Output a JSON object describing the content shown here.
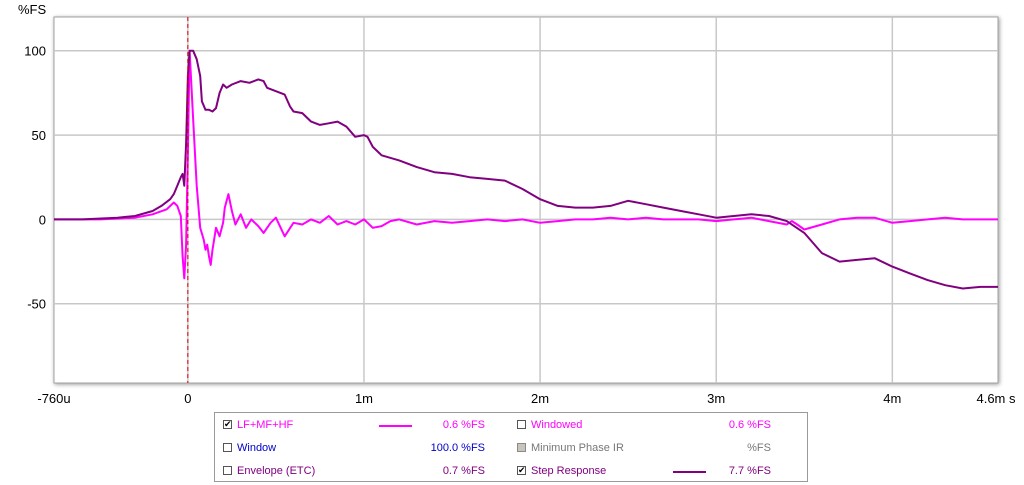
{
  "chart_data": {
    "type": "line",
    "ylabel": "%FS",
    "x_unit": "s",
    "xlim": [
      -0.00076,
      0.0046
    ],
    "ylim": [
      -97,
      120
    ],
    "x_ticks": [
      {
        "value": -0.00076,
        "label": "-760u"
      },
      {
        "value": 0,
        "label": "0"
      },
      {
        "value": 0.001,
        "label": "1m"
      },
      {
        "value": 0.002,
        "label": "2m"
      },
      {
        "value": 0.003,
        "label": "3m"
      },
      {
        "value": 0.004,
        "label": "4m"
      },
      {
        "value": 0.0046,
        "label": "4.6m s"
      }
    ],
    "y_ticks": [
      {
        "value": 100,
        "label": "100"
      },
      {
        "value": 50,
        "label": "50"
      },
      {
        "value": 0,
        "label": "0"
      },
      {
        "value": -50,
        "label": "-50"
      }
    ],
    "grid": true,
    "cursor_x": 0,
    "cursor_color": "#e00000",
    "series": [
      {
        "name": "LF+MF+HF",
        "color": "#ff00ff",
        "points": [
          [
            -0.00076,
            0
          ],
          [
            -0.0005,
            0
          ],
          [
            -0.0003,
            1
          ],
          [
            -0.0002,
            3
          ],
          [
            -0.00012,
            6
          ],
          [
            -8e-05,
            10
          ],
          [
            -6e-05,
            8
          ],
          [
            -4e-05,
            2
          ],
          [
            -3e-05,
            -22
          ],
          [
            -2e-05,
            -35
          ],
          [
            -1e-05,
            -15
          ],
          [
            0,
            40
          ],
          [
            1e-05,
            100
          ],
          [
            3e-05,
            60
          ],
          [
            5e-05,
            20
          ],
          [
            7e-05,
            -5
          ],
          [
            9e-05,
            -12
          ],
          [
            0.0001,
            -18
          ],
          [
            0.00011,
            -15
          ],
          [
            0.00012,
            -22
          ],
          [
            0.00013,
            -27
          ],
          [
            0.00014,
            -18
          ],
          [
            0.00016,
            -5
          ],
          [
            0.00018,
            -10
          ],
          [
            0.0002,
            -2
          ],
          [
            0.00021,
            7
          ],
          [
            0.00023,
            15
          ],
          [
            0.00025,
            5
          ],
          [
            0.00027,
            -3
          ],
          [
            0.0003,
            3
          ],
          [
            0.00033,
            -5
          ],
          [
            0.00036,
            0
          ],
          [
            0.0004,
            -4
          ],
          [
            0.00043,
            -8
          ],
          [
            0.00047,
            -2
          ],
          [
            0.0005,
            1
          ],
          [
            0.00055,
            -10
          ],
          [
            0.0006,
            -2
          ],
          [
            0.00065,
            -3
          ],
          [
            0.0007,
            0
          ],
          [
            0.00075,
            -2
          ],
          [
            0.0008,
            2
          ],
          [
            0.00085,
            -3
          ],
          [
            0.0009,
            -1
          ],
          [
            0.00095,
            -3
          ],
          [
            0.001,
            0
          ],
          [
            0.00105,
            -5
          ],
          [
            0.0011,
            -4
          ],
          [
            0.00115,
            -1
          ],
          [
            0.0012,
            0
          ],
          [
            0.0013,
            -3
          ],
          [
            0.0014,
            -1
          ],
          [
            0.0015,
            -2
          ],
          [
            0.0016,
            -1
          ],
          [
            0.0017,
            0
          ],
          [
            0.0018,
            -1
          ],
          [
            0.0019,
            0
          ],
          [
            0.002,
            -2
          ],
          [
            0.0021,
            -1
          ],
          [
            0.0022,
            0
          ],
          [
            0.0023,
            0
          ],
          [
            0.0024,
            1
          ],
          [
            0.0025,
            0
          ],
          [
            0.0026,
            1
          ],
          [
            0.0027,
            0
          ],
          [
            0.0028,
            0
          ],
          [
            0.0029,
            0
          ],
          [
            0.003,
            -1
          ],
          [
            0.0031,
            0
          ],
          [
            0.0032,
            1
          ],
          [
            0.0033,
            -1
          ],
          [
            0.0034,
            -3
          ],
          [
            0.00343,
            -1
          ],
          [
            0.00346,
            -3
          ],
          [
            0.0035,
            -6
          ],
          [
            0.0036,
            -3
          ],
          [
            0.0037,
            0
          ],
          [
            0.0038,
            1
          ],
          [
            0.0039,
            1
          ],
          [
            0.004,
            -2
          ],
          [
            0.0041,
            -1
          ],
          [
            0.0042,
            0
          ],
          [
            0.0043,
            1
          ],
          [
            0.0044,
            0
          ],
          [
            0.0045,
            0
          ],
          [
            0.0046,
            0
          ]
        ]
      },
      {
        "name": "Step Response",
        "color": "#800080",
        "points": [
          [
            -0.00076,
            0
          ],
          [
            -0.0006,
            0
          ],
          [
            -0.0004,
            1
          ],
          [
            -0.0003,
            2
          ],
          [
            -0.0002,
            5
          ],
          [
            -0.00015,
            8
          ],
          [
            -0.0001,
            12
          ],
          [
            -8e-05,
            15
          ],
          [
            -6e-05,
            20
          ],
          [
            -4e-05,
            25
          ],
          [
            -3e-05,
            27
          ],
          [
            -2e-05,
            20
          ],
          [
            -1e-05,
            45
          ],
          [
            0,
            85
          ],
          [
            1e-05,
            100
          ],
          [
            3e-05,
            100
          ],
          [
            5e-05,
            95
          ],
          [
            7e-05,
            85
          ],
          [
            8e-05,
            70
          ],
          [
            0.0001,
            65
          ],
          [
            0.00012,
            65
          ],
          [
            0.00014,
            64
          ],
          [
            0.00016,
            66
          ],
          [
            0.00018,
            75
          ],
          [
            0.0002,
            80
          ],
          [
            0.00022,
            78
          ],
          [
            0.00025,
            80
          ],
          [
            0.0003,
            82
          ],
          [
            0.00035,
            81
          ],
          [
            0.0004,
            83
          ],
          [
            0.00043,
            82
          ],
          [
            0.00045,
            78
          ],
          [
            0.0005,
            76
          ],
          [
            0.00055,
            74
          ],
          [
            0.00058,
            67
          ],
          [
            0.0006,
            64
          ],
          [
            0.00065,
            63
          ],
          [
            0.0007,
            58
          ],
          [
            0.00075,
            56
          ],
          [
            0.0008,
            57
          ],
          [
            0.00085,
            58
          ],
          [
            0.0009,
            55
          ],
          [
            0.00095,
            49
          ],
          [
            0.001,
            50
          ],
          [
            0.00102,
            49
          ],
          [
            0.00105,
            43
          ],
          [
            0.0011,
            38
          ],
          [
            0.0012,
            35
          ],
          [
            0.0013,
            31
          ],
          [
            0.0014,
            28
          ],
          [
            0.0015,
            27
          ],
          [
            0.0016,
            25
          ],
          [
            0.0017,
            24
          ],
          [
            0.0018,
            23
          ],
          [
            0.0019,
            18
          ],
          [
            0.002,
            12
          ],
          [
            0.0021,
            8
          ],
          [
            0.0022,
            7
          ],
          [
            0.0023,
            7
          ],
          [
            0.0024,
            8
          ],
          [
            0.0025,
            11
          ],
          [
            0.0026,
            9
          ],
          [
            0.0027,
            7
          ],
          [
            0.0028,
            5
          ],
          [
            0.0029,
            3
          ],
          [
            0.003,
            1
          ],
          [
            0.0031,
            2
          ],
          [
            0.0032,
            3
          ],
          [
            0.0033,
            2
          ],
          [
            0.0034,
            -1
          ],
          [
            0.0035,
            -8
          ],
          [
            0.0036,
            -20
          ],
          [
            0.0037,
            -25
          ],
          [
            0.0038,
            -24
          ],
          [
            0.0039,
            -23
          ],
          [
            0.004,
            -28
          ],
          [
            0.0041,
            -32
          ],
          [
            0.0042,
            -36
          ],
          [
            0.0043,
            -39
          ],
          [
            0.0044,
            -41
          ],
          [
            0.0045,
            -40
          ],
          [
            0.0046,
            -40
          ]
        ]
      }
    ]
  },
  "legend": {
    "items": [
      {
        "label": "LF+MF+HF",
        "checked": true,
        "color": "#ff00ff",
        "line_color": "#ff00ff",
        "value": "0.6 %FS"
      },
      {
        "label": "Window",
        "checked": false,
        "color": "#0000cc",
        "line_color": "",
        "value": "100.0 %FS"
      },
      {
        "label": "Envelope (ETC)",
        "checked": false,
        "color": "#800080",
        "line_color": "",
        "value": "0.7 %FS"
      },
      {
        "label": "Windowed",
        "checked": false,
        "color": "#ff00ff",
        "line_color": "",
        "value": "0.6 %FS"
      },
      {
        "label": "Minimum Phase IR",
        "checked": false,
        "color": "#777777",
        "line_color": "",
        "value": "%FS",
        "disabled": true
      },
      {
        "label": "Step Response",
        "checked": true,
        "color": "#800080",
        "line_color": "#800080",
        "value": "7.7 %FS"
      }
    ]
  }
}
